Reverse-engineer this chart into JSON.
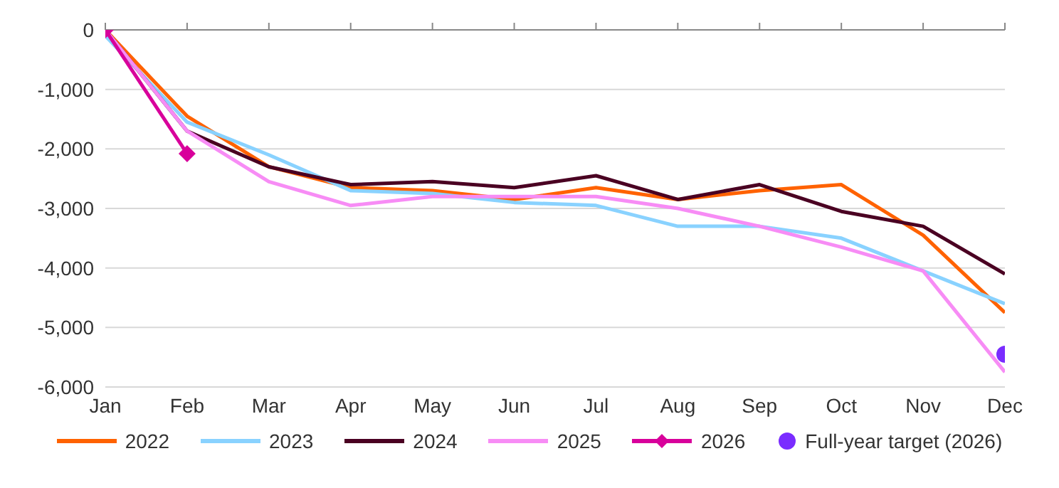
{
  "chart_data": {
    "type": "line",
    "categories": [
      "Jan",
      "Feb",
      "Mar",
      "Apr",
      "May",
      "Jun",
      "Jul",
      "Aug",
      "Sep",
      "Oct",
      "Nov",
      "Dec"
    ],
    "series": [
      {
        "name": "2022",
        "color": "#ff6200",
        "values": [
          0,
          -1450,
          -2300,
          -2650,
          -2700,
          -2850,
          -2650,
          -2850,
          -2700,
          -2600,
          -3450,
          -4750
        ]
      },
      {
        "name": "2023",
        "color": "#89d2ff",
        "values": [
          -100,
          -1550,
          -2100,
          -2700,
          -2750,
          -2900,
          -2950,
          -3300,
          -3300,
          -3500,
          -4050,
          -4600
        ]
      },
      {
        "name": "2024",
        "color": "#4a0022",
        "values": [
          0,
          -1700,
          -2300,
          -2600,
          -2550,
          -2650,
          -2450,
          -2850,
          -2600,
          -3050,
          -3300,
          -4100
        ]
      },
      {
        "name": "2025",
        "color": "#f78cf5",
        "values": [
          0,
          -1700,
          -2550,
          -2950,
          -2800,
          -2800,
          -2800,
          -3000,
          -3300,
          -3650,
          -4050,
          -5750
        ]
      },
      {
        "name": "2026",
        "color": "#d8009b",
        "marker": "diamond",
        "values": [
          0,
          -2080,
          null,
          null,
          null,
          null,
          null,
          null,
          null,
          null,
          null,
          null
        ]
      },
      {
        "name": "Full-year target (2026)",
        "type": "scatter",
        "color": "#7a2cff",
        "marker": "circle",
        "x": [
          "Dec"
        ],
        "values": [
          -5450
        ]
      }
    ],
    "ylim": [
      -6000,
      0
    ],
    "yticks": [
      {
        "value": -6000,
        "label": "-6,000"
      },
      {
        "value": -5000,
        "label": "-5,000"
      },
      {
        "value": -4000,
        "label": "-4,000"
      },
      {
        "value": -3000,
        "label": "-3,000"
      },
      {
        "value": -2000,
        "label": "-2,000"
      },
      {
        "value": -1000,
        "label": "-1,000"
      },
      0
    ],
    "grid": "y",
    "legend": "bottom",
    "marker": "none"
  }
}
